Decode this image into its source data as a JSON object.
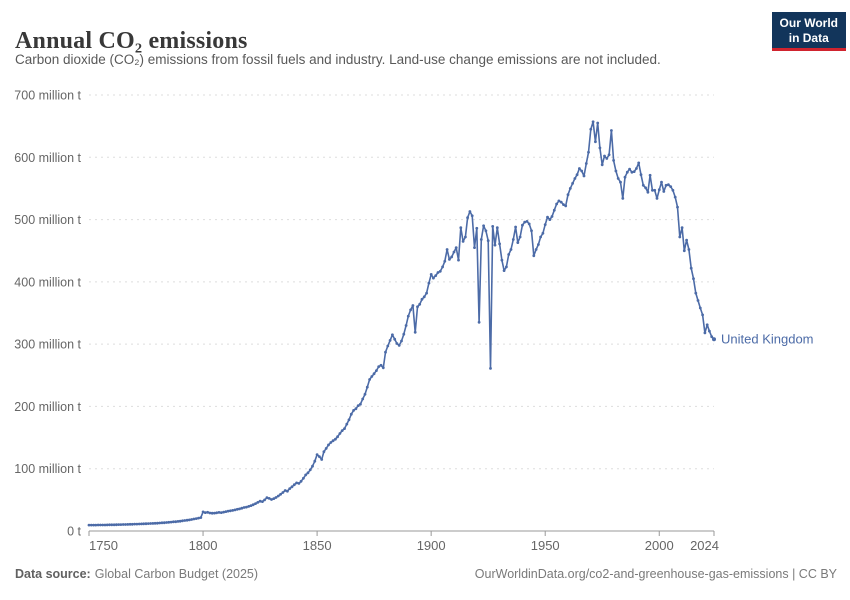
{
  "header": {
    "title": "Annual CO₂ emissions",
    "subtitle": "Carbon dioxide (CO₂) emissions from fossil fuels and industry. Land-use change emissions are not included.",
    "logo_line1": "Our World",
    "logo_line2": "in Data"
  },
  "chart_data": {
    "type": "line",
    "title": "Annual CO₂ emissions",
    "xlabel": "",
    "ylabel": "",
    "y_unit": "million t",
    "xlim": [
      1750,
      2024
    ],
    "ylim": [
      0,
      700
    ],
    "grid": "dashed-horizontal",
    "legend_position": "end-of-line-label",
    "x_ticks": [
      1750,
      1800,
      1850,
      1900,
      1950,
      2000,
      2024
    ],
    "y_ticks": [
      {
        "value": 0,
        "label": "0 t"
      },
      {
        "value": 100,
        "label": "100 million t"
      },
      {
        "value": 200,
        "label": "200 million t"
      },
      {
        "value": 300,
        "label": "300 million t"
      },
      {
        "value": 400,
        "label": "400 million t"
      },
      {
        "value": 500,
        "label": "500 million t"
      },
      {
        "value": 600,
        "label": "600 million t"
      },
      {
        "value": 700,
        "label": "700 million t"
      }
    ],
    "x_start": 1750,
    "x_end": 2024,
    "x_step": 1,
    "end_label": "United Kingdom",
    "series": [
      {
        "name": "United Kingdom",
        "color": "#4c6ba7",
        "values": [
          9.4,
          9.4,
          9.5,
          9.5,
          9.6,
          9.6,
          9.7,
          9.7,
          9.8,
          9.9,
          10,
          10,
          10.1,
          10.2,
          10.3,
          10.4,
          10.5,
          10.6,
          10.7,
          10.8,
          11,
          11.1,
          11.2,
          11.4,
          11.5,
          11.7,
          11.9,
          12,
          12.2,
          12.4,
          12.6,
          12.9,
          13.1,
          13.4,
          13.7,
          14,
          14.3,
          14.7,
          15,
          15.4,
          15.8,
          16.3,
          16.8,
          17.3,
          17.9,
          18.5,
          19.2,
          19.9,
          20.7,
          21.5,
          30.6,
          29.5,
          30.1,
          28.9,
          28.6,
          28.8,
          29.3,
          29.9,
          29.6,
          30.4,
          31.2,
          31.9,
          32.4,
          33.1,
          33.9,
          34.9,
          35.5,
          36.6,
          37.8,
          38.4,
          39.5,
          40.8,
          42.3,
          44,
          45.9,
          47.9,
          47.2,
          50,
          53.5,
          52.3,
          50.5,
          52,
          53.8,
          56.2,
          58.9,
          61.8,
          65,
          63.9,
          68.1,
          71,
          74.3,
          77.2,
          76.4,
          79.8,
          84.6,
          90.1,
          93.5,
          98.2,
          104,
          112,
          122.7,
          119.4,
          114.8,
          127.3,
          132.6,
          138.2,
          142.1,
          145,
          147.4,
          151.4,
          156.5,
          161.2,
          164.4,
          171.7,
          178.6,
          187.5,
          193.7,
          196.4,
          201.3,
          203.5,
          211.9,
          219.5,
          231,
          243.2,
          248,
          252.6,
          257.6,
          263.9,
          266,
          262,
          287,
          297,
          306,
          315,
          308,
          301,
          298,
          305,
          316,
          330,
          345,
          355,
          362,
          319,
          360,
          364,
          372,
          376,
          382,
          398,
          412,
          406,
          410,
          415,
          417,
          424,
          433,
          452,
          436,
          440,
          448,
          455,
          435,
          487,
          465,
          472,
          503,
          513,
          506,
          455,
          486,
          335,
          468,
          490,
          482,
          466,
          261,
          489,
          459,
          487,
          461,
          435,
          418,
          424,
          444,
          452,
          468,
          488,
          463,
          472,
          491,
          496,
          497,
          493,
          482,
          442,
          452,
          460,
          472,
          478,
          492,
          504,
          500,
          505,
          515,
          525,
          530,
          528,
          524,
          522,
          540,
          550,
          558,
          566,
          572,
          582,
          578,
          570,
          590,
          608,
          645,
          657,
          625,
          655,
          615,
          588,
          602,
          598,
          604,
          643,
          595,
          578,
          566,
          560,
          534,
          568,
          576,
          581,
          576,
          577,
          582,
          591,
          572,
          555,
          551,
          544,
          571,
          547,
          547,
          534,
          548,
          560,
          545,
          555,
          556,
          553,
          547,
          536,
          520,
          472,
          487,
          450,
          467,
          452,
          422,
          405,
          382,
          370,
          358,
          347,
          318,
          331,
          321,
          312,
          308
        ]
      }
    ]
  },
  "footer": {
    "datasource_label": "Data source:",
    "datasource_value": "Global Carbon Budget (2025)",
    "right": "OurWorldinData.org/co2-and-greenhouse-gas-emissions | CC BY"
  },
  "colors": {
    "line": "#4c6ba7",
    "gridline": "#dddddd",
    "axis": "#999999",
    "tick_label": "#666666",
    "title": "#383838",
    "subtitle": "#595959",
    "footer": "#7a7a7a",
    "logo_navy": "#12355b",
    "logo_red": "#d0232e"
  }
}
